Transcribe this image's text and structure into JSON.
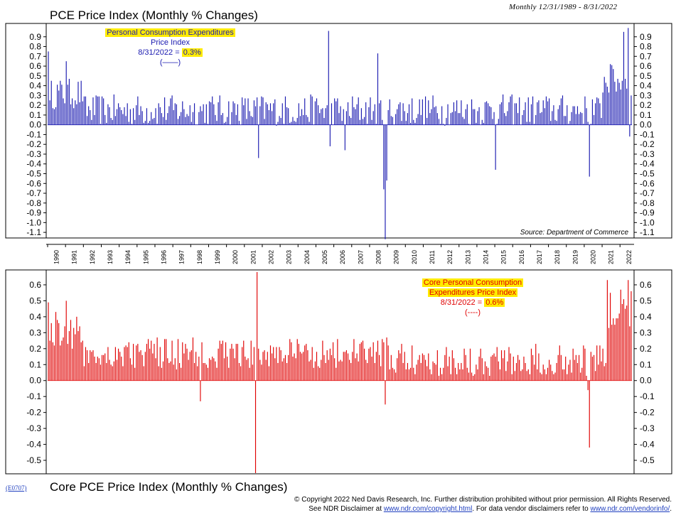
{
  "header": {
    "title": "PCE Price Index (Monthly % Changes)",
    "range": "Monthly 12/31/1989 - 8/31/2022"
  },
  "footer": {
    "title": "Core PCE Price Index (Monthly % Changes)",
    "code": "(E0707)",
    "copyright_line1": "© Copyright 2022 Ned Davis Research, Inc.  Further distribution prohibited without prior permission.  All Rights Reserved.",
    "line2_prefix": "See NDR Disclaimer at ",
    "link1": "www.ndr.com/copyright.html",
    "line2_middle": ". For data vendor disclaimers refer to ",
    "link2": "www.ndr.com/vendorinfo/",
    "line2_suffix": "."
  },
  "source": "Source: Department of Commerce",
  "colors": {
    "headline": "#1a1ab0",
    "core": "#e00000",
    "highlight": "#ffeb00"
  },
  "chart_data": [
    {
      "type": "bar",
      "name": "PCE Price Index",
      "legend": {
        "line1": "Personal Consumption Expenditures",
        "line2": "Price Index",
        "date": "8/31/2022",
        "value": "0.3%",
        "marker": "(——)"
      },
      "ylim": [
        -1.15,
        1.0
      ],
      "yticks": [
        "0.9",
        "0.8",
        "0.7",
        "0.6",
        "0.5",
        "0.4",
        "0.3",
        "0.2",
        "0.1",
        "0.0",
        "-0.1",
        "-0.2",
        "-0.3",
        "-0.4",
        "-0.5",
        "-0.6",
        "-0.7",
        "-0.8",
        "-0.9",
        "-1.0",
        "-1.1"
      ],
      "key_points": [
        {
          "date": "1990-01",
          "value": 0.75
        },
        {
          "date": "1990-02",
          "value": 0.25
        },
        {
          "date": "1990-03",
          "value": 0.45
        },
        {
          "date": "1991-01",
          "value": 0.65
        },
        {
          "date": "2001-10",
          "value": -0.34
        },
        {
          "date": "2005-09",
          "value": 0.96
        },
        {
          "date": "2005-10",
          "value": -0.22
        },
        {
          "date": "2006-08",
          "value": -0.26
        },
        {
          "date": "2008-06",
          "value": 0.73
        },
        {
          "date": "2008-10",
          "value": -0.66
        },
        {
          "date": "2008-11",
          "value": -1.17
        },
        {
          "date": "2008-12",
          "value": -0.57
        },
        {
          "date": "2015-01",
          "value": -0.46
        },
        {
          "date": "2020-04",
          "value": -0.53
        },
        {
          "date": "2021-06",
          "value": 0.62
        },
        {
          "date": "2022-03",
          "value": 0.95
        },
        {
          "date": "2022-06",
          "value": 0.99
        },
        {
          "date": "2022-07",
          "value": -0.12
        },
        {
          "date": "2022-08",
          "value": 0.3
        }
      ]
    },
    {
      "type": "bar",
      "name": "Core PCE Price Index",
      "legend": {
        "line1": "Core Personal Consumption",
        "line2": "Expenditures Price Index",
        "date": "8/31/2022",
        "value": "0.6%",
        "marker": "(----)"
      },
      "ylim": [
        -0.58,
        0.68
      ],
      "yticks": [
        "0.6",
        "0.5",
        "0.4",
        "0.3",
        "0.2",
        "0.1",
        "0.0",
        "-0.1",
        "-0.2",
        "-0.3",
        "-0.4",
        "-0.5"
      ],
      "key_points": [
        {
          "date": "1990-01",
          "value": 0.49
        },
        {
          "date": "1990-06",
          "value": 0.43
        },
        {
          "date": "1991-01",
          "value": 0.5
        },
        {
          "date": "1998-07",
          "value": -0.13
        },
        {
          "date": "2001-08",
          "value": -0.58
        },
        {
          "date": "2001-09",
          "value": 0.68
        },
        {
          "date": "2008-11",
          "value": -0.15
        },
        {
          "date": "2020-03",
          "value": -0.06
        },
        {
          "date": "2020-04",
          "value": -0.42
        },
        {
          "date": "2021-04",
          "value": 0.63
        },
        {
          "date": "2021-06",
          "value": 0.55
        },
        {
          "date": "2022-01",
          "value": 0.57
        },
        {
          "date": "2022-06",
          "value": 0.63
        },
        {
          "date": "2022-08",
          "value": 0.56
        }
      ]
    }
  ],
  "years": [
    "1990",
    "1991",
    "1992",
    "1993",
    "1994",
    "1995",
    "1996",
    "1997",
    "1998",
    "1999",
    "2000",
    "2001",
    "2002",
    "2003",
    "2004",
    "2005",
    "2006",
    "2007",
    "2008",
    "2009",
    "2010",
    "2011",
    "2012",
    "2013",
    "2014",
    "2015",
    "2016",
    "2017",
    "2018",
    "2019",
    "2020",
    "2021",
    "2022"
  ]
}
